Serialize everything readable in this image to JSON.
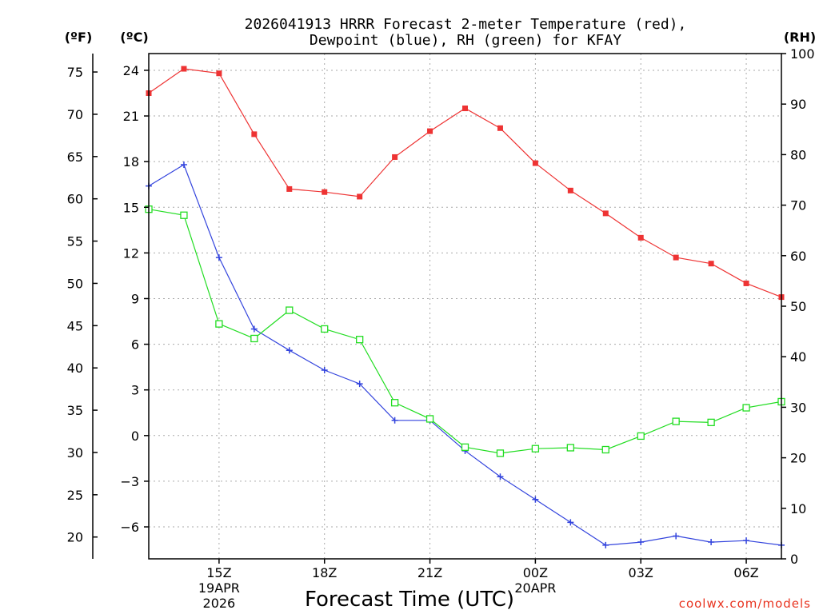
{
  "chart_data": {
    "type": "line",
    "title_line1": "2026041913 HRRR Forecast 2-meter Temperature (red),",
    "title_line2": "Dewpoint (blue), RH (green) for KFAY",
    "xlabel": "Forecast Time (UTC)",
    "credit": "coolwx.com/models",
    "units": {
      "fahrenheit": "(ºF)",
      "celsius": "(ºC)",
      "rh": "(RH)"
    },
    "x_hours": [
      13,
      14,
      15,
      16,
      17,
      18,
      19,
      20,
      21,
      22,
      23,
      24,
      25,
      26,
      27,
      28,
      29,
      30,
      31
    ],
    "xlim": [
      13,
      31
    ],
    "x_ticks": [
      {
        "hour": 15,
        "label": "15Z",
        "date1": "19APR",
        "date2": "2026"
      },
      {
        "hour": 18,
        "label": "18Z"
      },
      {
        "hour": 21,
        "label": "21Z"
      },
      {
        "hour": 24,
        "label": "00Z",
        "date1": "20APR"
      },
      {
        "hour": 27,
        "label": "03Z"
      },
      {
        "hour": 30,
        "label": "06Z"
      }
    ],
    "celsius_axis": {
      "ylim": [
        -8.1,
        25.1
      ],
      "ticks": [
        24,
        21,
        18,
        15,
        12,
        9,
        6,
        3,
        0,
        -3,
        -6
      ],
      "tick_labels": [
        "24",
        "21",
        "18",
        "15",
        "12",
        "9",
        "6",
        "3",
        "0",
        "−3",
        "−6"
      ]
    },
    "fahrenheit_axis": {
      "ticks": [
        75,
        70,
        65,
        60,
        55,
        50,
        45,
        40,
        35,
        30,
        25,
        20
      ],
      "tick_labels": [
        "75",
        "70",
        "65",
        "60",
        "55",
        "50",
        "45",
        "40",
        "35",
        "30",
        "25",
        "20"
      ]
    },
    "rh_axis": {
      "ylim": [
        0,
        100
      ],
      "ticks": [
        0,
        10,
        20,
        30,
        40,
        50,
        60,
        70,
        80,
        90,
        100
      ],
      "tick_labels": [
        "0",
        "10",
        "20",
        "30",
        "40",
        "50",
        "60",
        "70",
        "80",
        "90",
        "100"
      ]
    },
    "series": [
      {
        "name": "Temperature",
        "axis": "celsius",
        "color": "#ee3333",
        "marker": "filled-square",
        "values": [
          22.5,
          24.1,
          23.8,
          19.8,
          16.2,
          16.0,
          15.7,
          18.3,
          20.0,
          21.5,
          20.2,
          17.9,
          16.1,
          14.6,
          13.0,
          11.7,
          11.3,
          10.0,
          9.1
        ]
      },
      {
        "name": "Dewpoint",
        "axis": "celsius",
        "color": "#3344dd",
        "marker": "plus",
        "values": [
          16.4,
          17.8,
          11.7,
          7.0,
          5.6,
          4.3,
          3.4,
          1.0,
          1.0,
          -1.0,
          -2.7,
          -4.2,
          -5.7,
          -7.2,
          -7.0,
          -6.6,
          -7.0,
          -6.9,
          -7.2
        ]
      },
      {
        "name": "RH",
        "axis": "rh",
        "color": "#22dd22",
        "marker": "open-square",
        "values": [
          69.2,
          68.0,
          46.5,
          43.6,
          49.2,
          45.5,
          43.4,
          30.9,
          27.7,
          22.1,
          20.9,
          21.8,
          22.0,
          21.6,
          24.3,
          27.2,
          27.0,
          29.9,
          31.1
        ]
      }
    ]
  }
}
